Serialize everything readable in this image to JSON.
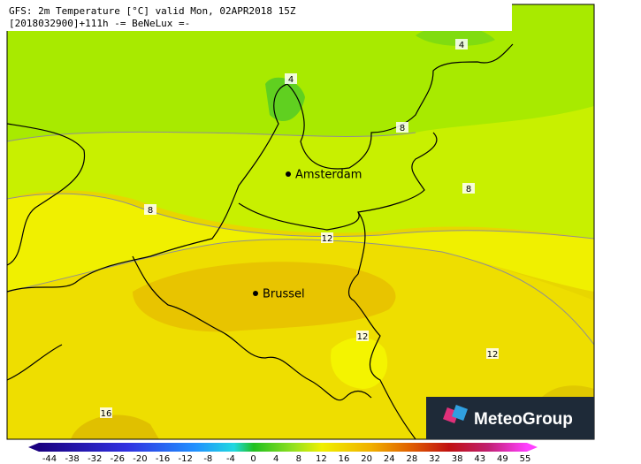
{
  "header": {
    "line1": "GFS: 2m Temperature [°C] valid Mon, 02APR2018 15Z",
    "line2": "[2018032900]+111h -= BeNeLux =-"
  },
  "cities": [
    "Amsterdam",
    "Brussel"
  ],
  "contour_labels": [
    "4",
    "4",
    "8",
    "8",
    "8",
    "12",
    "12",
    "12",
    "16"
  ],
  "legend": [
    "-44",
    "-38",
    "-32",
    "-26",
    "-20",
    "-16",
    "-12",
    "-8",
    "-4",
    "0",
    "4",
    "8",
    "12",
    "16",
    "20",
    "24",
    "28",
    "32",
    "38",
    "43",
    "49",
    "55"
  ],
  "logo": "MeteoGroup"
}
